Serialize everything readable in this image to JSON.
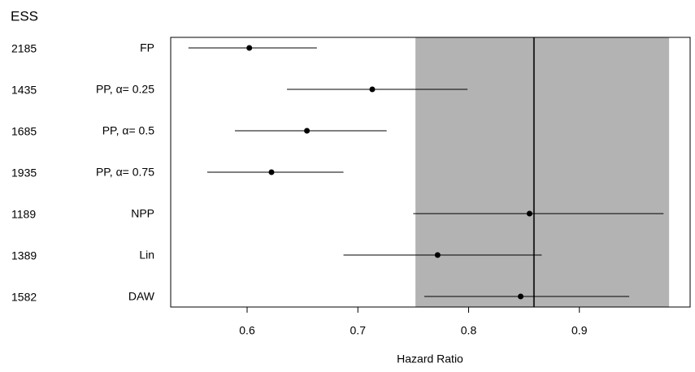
{
  "chart_data": {
    "type": "forest",
    "column_header": "ESS",
    "ess": [
      2185,
      1435,
      1685,
      1935,
      1189,
      1389,
      1582
    ],
    "categories": [
      "FP",
      "PP, α= 0.25",
      "PP, α= 0.5",
      "PP, α= 0.75",
      "NPP",
      "Lin",
      "DAW"
    ],
    "values": [
      0.602,
      0.713,
      0.654,
      0.622,
      0.855,
      0.772,
      0.847
    ],
    "lower": [
      0.547,
      0.636,
      0.589,
      0.564,
      0.75,
      0.687,
      0.76
    ],
    "upper": [
      0.663,
      0.799,
      0.726,
      0.687,
      0.976,
      0.866,
      0.945
    ],
    "color": "#000000",
    "band": [
      0.752,
      0.981
    ],
    "band_color": "#b3b3b3",
    "reference": 0.859,
    "xlabel": "Hazard Ratio",
    "xlim": [
      0.531,
      1.0
    ],
    "xticks": [
      0.6,
      0.7,
      0.8,
      0.9
    ]
  }
}
